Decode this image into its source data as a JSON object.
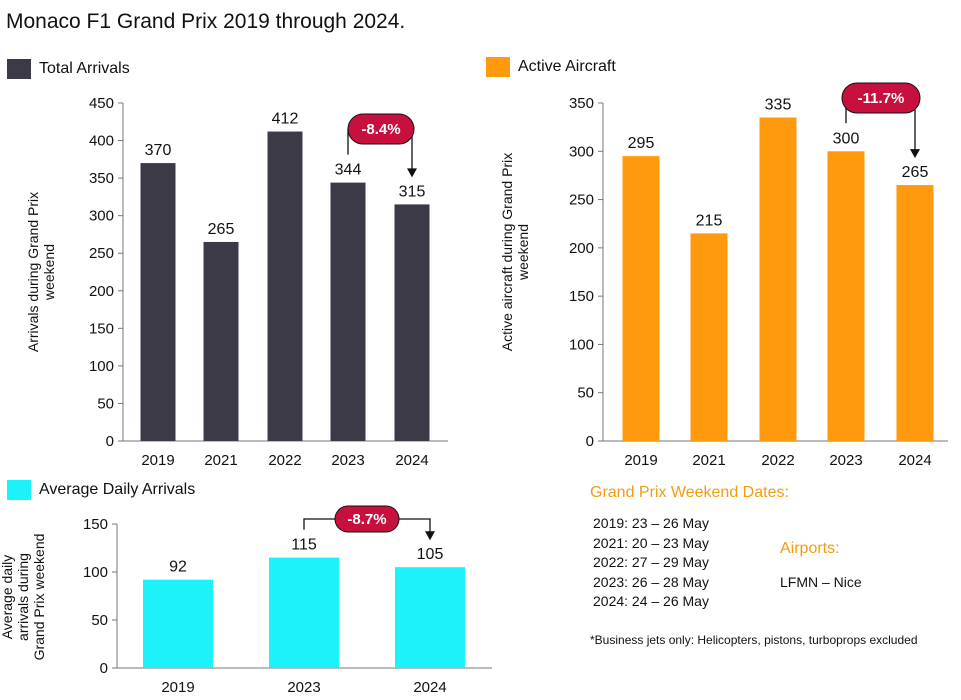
{
  "title": "Monaco F1 Grand Prix 2019 through 2024.",
  "colors": {
    "dark": "#3D3A48",
    "orange": "#FF9A0F",
    "cyan": "#1CF2FA",
    "badge": "#C8103E",
    "info": "#F39C12"
  },
  "chart_data": [
    {
      "type": "bar",
      "legend": "Total Arrivals",
      "ylabel": "Arrivals during Grand Prix weekend",
      "categories": [
        "2019",
        "2021",
        "2022",
        "2023",
        "2024"
      ],
      "values": [
        370,
        265,
        412,
        344,
        315
      ],
      "ylim": [
        0,
        450
      ],
      "yticks": [
        0,
        50,
        100,
        150,
        200,
        250,
        300,
        350,
        400,
        450
      ],
      "change": {
        "label": "-8.4%",
        "from": "2023",
        "to": "2024"
      }
    },
    {
      "type": "bar",
      "legend": "Active Aircraft",
      "ylabel": "Active aircraft during Grand Prix weekend",
      "categories": [
        "2019",
        "2021",
        "2022",
        "2023",
        "2024"
      ],
      "values": [
        295,
        215,
        335,
        300,
        265
      ],
      "ylim": [
        0,
        350
      ],
      "yticks": [
        0,
        50,
        100,
        150,
        200,
        250,
        300,
        350
      ],
      "change": {
        "label": "-11.7%",
        "from": "2023",
        "to": "2024"
      }
    },
    {
      "type": "bar",
      "legend": "Average Daily Arrivals",
      "ylabel": "Average daily arrivals during Grand Prix weekend",
      "categories": [
        "2019",
        "2023",
        "2024"
      ],
      "values": [
        92,
        115,
        105
      ],
      "ylim": [
        0,
        150
      ],
      "yticks": [
        0,
        50,
        100,
        150
      ],
      "change": {
        "label": "-8.7%",
        "from": "2023",
        "to": "2024"
      }
    }
  ],
  "info": {
    "dates_heading": "Grand Prix Weekend Dates:",
    "dates": [
      "2019: 23 – 26 May",
      "2021: 20 – 23 May",
      "2022: 27 – 29 May",
      "2023: 26 – 28 May",
      "2024: 24 – 26 May"
    ],
    "airports_heading": "Airports:",
    "airport": "LFMN – Nice",
    "footnote": "*Business jets only: Helicopters, pistons, turboprops excluded"
  }
}
